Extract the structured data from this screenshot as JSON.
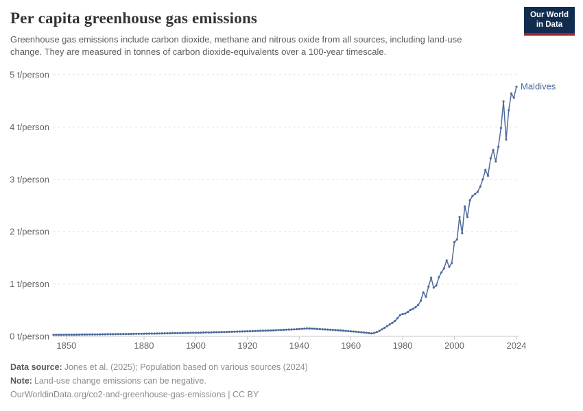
{
  "header": {
    "title": "Per capita greenhouse gas emissions",
    "subtitle": "Greenhouse gas emissions include carbon dioxide, methane and nitrous oxide from all sources, including land-use change. They are measured in tonnes of carbon dioxide-equivalents over a 100-year timescale."
  },
  "logo": {
    "line1": "Our World",
    "line2": "in Data",
    "bg_color": "#102d50",
    "accent_color": "#9e2334"
  },
  "chart_data": {
    "type": "line",
    "title": "Per capita greenhouse gas emissions",
    "ylabel": "t/person",
    "xlabel": "",
    "x_range": [
      1845,
      2024
    ],
    "ylim": [
      0,
      5
    ],
    "grid": true,
    "legend_position": "end-of-line",
    "x_ticks": [
      1850,
      1880,
      1900,
      1920,
      1940,
      1960,
      1980,
      2000,
      2024
    ],
    "y_ticks": [
      {
        "value": 0,
        "label": "0 t/person"
      },
      {
        "value": 1,
        "label": "1 t/person"
      },
      {
        "value": 2,
        "label": "2 t/person"
      },
      {
        "value": 3,
        "label": "3 t/person"
      },
      {
        "value": 4,
        "label": "4 t/person"
      },
      {
        "value": 5,
        "label": "5 t/person"
      }
    ],
    "series": [
      {
        "name": "Maldives",
        "color": "#4C6A9C",
        "points": [
          [
            1845,
            0.029
          ],
          [
            1846,
            0.029
          ],
          [
            1847,
            0.03
          ],
          [
            1848,
            0.03
          ],
          [
            1849,
            0.03
          ],
          [
            1850,
            0.031
          ],
          [
            1851,
            0.031
          ],
          [
            1852,
            0.032
          ],
          [
            1853,
            0.032
          ],
          [
            1854,
            0.033
          ],
          [
            1855,
            0.033
          ],
          [
            1856,
            0.034
          ],
          [
            1857,
            0.034
          ],
          [
            1858,
            0.035
          ],
          [
            1859,
            0.036
          ],
          [
            1860,
            0.036
          ],
          [
            1861,
            0.037
          ],
          [
            1862,
            0.037
          ],
          [
            1863,
            0.038
          ],
          [
            1864,
            0.039
          ],
          [
            1865,
            0.039
          ],
          [
            1866,
            0.04
          ],
          [
            1867,
            0.041
          ],
          [
            1868,
            0.041
          ],
          [
            1869,
            0.042
          ],
          [
            1870,
            0.043
          ],
          [
            1871,
            0.043
          ],
          [
            1872,
            0.044
          ],
          [
            1873,
            0.045
          ],
          [
            1874,
            0.045
          ],
          [
            1875,
            0.046
          ],
          [
            1876,
            0.047
          ],
          [
            1877,
            0.048
          ],
          [
            1878,
            0.048
          ],
          [
            1879,
            0.049
          ],
          [
            1880,
            0.05
          ],
          [
            1881,
            0.051
          ],
          [
            1882,
            0.052
          ],
          [
            1883,
            0.052
          ],
          [
            1884,
            0.053
          ],
          [
            1885,
            0.054
          ],
          [
            1886,
            0.055
          ],
          [
            1887,
            0.056
          ],
          [
            1888,
            0.057
          ],
          [
            1889,
            0.058
          ],
          [
            1890,
            0.059
          ],
          [
            1891,
            0.06
          ],
          [
            1892,
            0.061
          ],
          [
            1893,
            0.062
          ],
          [
            1894,
            0.063
          ],
          [
            1895,
            0.064
          ],
          [
            1896,
            0.065
          ],
          [
            1897,
            0.066
          ],
          [
            1898,
            0.067
          ],
          [
            1899,
            0.068
          ],
          [
            1900,
            0.069
          ],
          [
            1901,
            0.07
          ],
          [
            1902,
            0.071
          ],
          [
            1903,
            0.073
          ],
          [
            1904,
            0.074
          ],
          [
            1905,
            0.075
          ],
          [
            1906,
            0.076
          ],
          [
            1907,
            0.078
          ],
          [
            1908,
            0.079
          ],
          [
            1909,
            0.08
          ],
          [
            1910,
            0.082
          ],
          [
            1911,
            0.083
          ],
          [
            1912,
            0.084
          ],
          [
            1913,
            0.086
          ],
          [
            1914,
            0.087
          ],
          [
            1915,
            0.089
          ],
          [
            1916,
            0.09
          ],
          [
            1917,
            0.092
          ],
          [
            1918,
            0.093
          ],
          [
            1919,
            0.095
          ],
          [
            1920,
            0.097
          ],
          [
            1921,
            0.098
          ],
          [
            1922,
            0.1
          ],
          [
            1923,
            0.102
          ],
          [
            1924,
            0.104
          ],
          [
            1925,
            0.106
          ],
          [
            1926,
            0.107
          ],
          [
            1927,
            0.109
          ],
          [
            1928,
            0.111
          ],
          [
            1929,
            0.113
          ],
          [
            1930,
            0.115
          ],
          [
            1931,
            0.118
          ],
          [
            1932,
            0.12
          ],
          [
            1933,
            0.122
          ],
          [
            1934,
            0.124
          ],
          [
            1935,
            0.127
          ],
          [
            1936,
            0.129
          ],
          [
            1937,
            0.131
          ],
          [
            1938,
            0.134
          ],
          [
            1939,
            0.136
          ],
          [
            1940,
            0.139
          ],
          [
            1941,
            0.143
          ],
          [
            1942,
            0.147
          ],
          [
            1943,
            0.15
          ],
          [
            1944,
            0.149
          ],
          [
            1945,
            0.147
          ],
          [
            1946,
            0.144
          ],
          [
            1947,
            0.141
          ],
          [
            1948,
            0.138
          ],
          [
            1949,
            0.135
          ],
          [
            1950,
            0.132
          ],
          [
            1951,
            0.129
          ],
          [
            1952,
            0.126
          ],
          [
            1953,
            0.123
          ],
          [
            1954,
            0.119
          ],
          [
            1955,
            0.116
          ],
          [
            1956,
            0.112
          ],
          [
            1957,
            0.108
          ],
          [
            1958,
            0.104
          ],
          [
            1959,
            0.1
          ],
          [
            1960,
            0.096
          ],
          [
            1961,
            0.092
          ],
          [
            1962,
            0.088
          ],
          [
            1963,
            0.083
          ],
          [
            1964,
            0.078
          ],
          [
            1965,
            0.073
          ],
          [
            1966,
            0.068
          ],
          [
            1967,
            0.062
          ],
          [
            1968,
            0.056
          ],
          [
            1969,
            0.064
          ],
          [
            1970,
            0.082
          ],
          [
            1971,
            0.105
          ],
          [
            1972,
            0.133
          ],
          [
            1973,
            0.163
          ],
          [
            1974,
            0.195
          ],
          [
            1975,
            0.228
          ],
          [
            1976,
            0.258
          ],
          [
            1977,
            0.295
          ],
          [
            1978,
            0.345
          ],
          [
            1979,
            0.405
          ],
          [
            1980,
            0.425
          ],
          [
            1981,
            0.435
          ],
          [
            1982,
            0.465
          ],
          [
            1983,
            0.505
          ],
          [
            1984,
            0.525
          ],
          [
            1985,
            0.555
          ],
          [
            1986,
            0.6
          ],
          [
            1987,
            0.68
          ],
          [
            1988,
            0.84
          ],
          [
            1989,
            0.755
          ],
          [
            1990,
            0.95
          ],
          [
            1991,
            1.12
          ],
          [
            1992,
            0.93
          ],
          [
            1993,
            0.97
          ],
          [
            1994,
            1.13
          ],
          [
            1995,
            1.22
          ],
          [
            1996,
            1.3
          ],
          [
            1997,
            1.45
          ],
          [
            1998,
            1.33
          ],
          [
            1999,
            1.4
          ],
          [
            2000,
            1.8
          ],
          [
            2001,
            1.85
          ],
          [
            2002,
            2.28
          ],
          [
            2003,
            1.97
          ],
          [
            2004,
            2.48
          ],
          [
            2005,
            2.28
          ],
          [
            2006,
            2.6
          ],
          [
            2007,
            2.68
          ],
          [
            2008,
            2.72
          ],
          [
            2009,
            2.76
          ],
          [
            2010,
            2.86
          ],
          [
            2011,
            3.0
          ],
          [
            2012,
            3.18
          ],
          [
            2013,
            3.07
          ],
          [
            2014,
            3.4
          ],
          [
            2015,
            3.56
          ],
          [
            2016,
            3.34
          ],
          [
            2017,
            3.62
          ],
          [
            2018,
            3.98
          ],
          [
            2019,
            4.49
          ],
          [
            2020,
            3.76
          ],
          [
            2021,
            4.32
          ],
          [
            2022,
            4.64
          ],
          [
            2023,
            4.56
          ],
          [
            2024,
            4.77
          ]
        ]
      }
    ],
    "series_end_label": "Maldives"
  },
  "colors": {
    "line": "#4C6A9C",
    "grid": "#dcdcdc",
    "axis": "#c8c8c8",
    "tick_text": "#666666"
  },
  "footer": {
    "data_source_label": "Data source:",
    "data_source_text": "Jones et al. (2025); Population based on various sources (2024)",
    "note_label": "Note:",
    "note_text": "Land-use change emissions can be negative.",
    "citation": "OurWorldinData.org/co2-and-greenhouse-gas-emissions | CC BY"
  }
}
